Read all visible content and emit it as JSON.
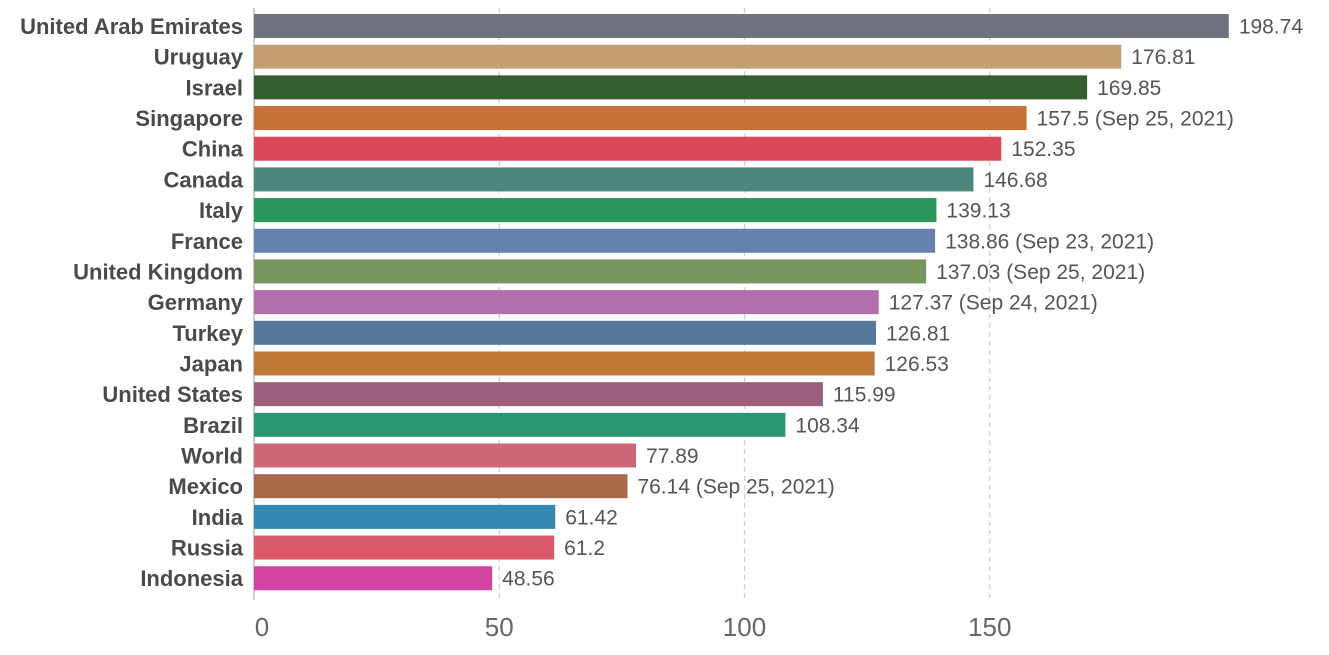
{
  "chart_data": {
    "type": "bar",
    "orientation": "horizontal",
    "title": "",
    "xlabel": "",
    "ylabel": "",
    "xlim": [
      0,
      200
    ],
    "xticks": [
      0,
      50,
      100,
      150
    ],
    "grid": true,
    "legend": "none",
    "bars": [
      {
        "category": "United Arab Emirates",
        "value": 198.74,
        "label": "198.74",
        "color": "#6f737e"
      },
      {
        "category": "Uruguay",
        "value": 176.81,
        "label": "176.81",
        "color": "#c59f72"
      },
      {
        "category": "Israel",
        "value": 169.85,
        "label": "169.85",
        "color": "#355e30"
      },
      {
        "category": "Singapore",
        "value": 157.5,
        "label": "157.5 (Sep 25, 2021)",
        "color": "#c8703a"
      },
      {
        "category": "China",
        "value": 152.35,
        "label": "152.35",
        "color": "#d9485b"
      },
      {
        "category": "Canada",
        "value": 146.68,
        "label": "146.68",
        "color": "#4b877b"
      },
      {
        "category": "Italy",
        "value": 139.13,
        "label": "139.13",
        "color": "#2a965c"
      },
      {
        "category": "France",
        "value": 138.86,
        "label": "138.86 (Sep 23, 2021)",
        "color": "#6781ae"
      },
      {
        "category": "United Kingdom",
        "value": 137.03,
        "label": "137.03 (Sep 25, 2021)",
        "color": "#76955f"
      },
      {
        "category": "Germany",
        "value": 127.37,
        "label": "127.37 (Sep 24, 2021)",
        "color": "#b36eae"
      },
      {
        "category": "Turkey",
        "value": 126.81,
        "label": "126.81",
        "color": "#55799a"
      },
      {
        "category": "Japan",
        "value": 126.53,
        "label": "126.53",
        "color": "#be7838"
      },
      {
        "category": "United States",
        "value": 115.99,
        "label": "115.99",
        "color": "#9c5f7c"
      },
      {
        "category": "Brazil",
        "value": 108.34,
        "label": "108.34",
        "color": "#2a9873"
      },
      {
        "category": "World",
        "value": 77.89,
        "label": "77.89",
        "color": "#cd6778"
      },
      {
        "category": "Mexico",
        "value": 76.14,
        "label": "76.14 (Sep 25, 2021)",
        "color": "#a8694a"
      },
      {
        "category": "India",
        "value": 61.42,
        "label": "61.42",
        "color": "#3489b3"
      },
      {
        "category": "Russia",
        "value": 61.2,
        "label": "61.2",
        "color": "#db5a6a"
      },
      {
        "category": "Indonesia",
        "value": 48.56,
        "label": "48.56",
        "color": "#d443a0"
      }
    ]
  }
}
